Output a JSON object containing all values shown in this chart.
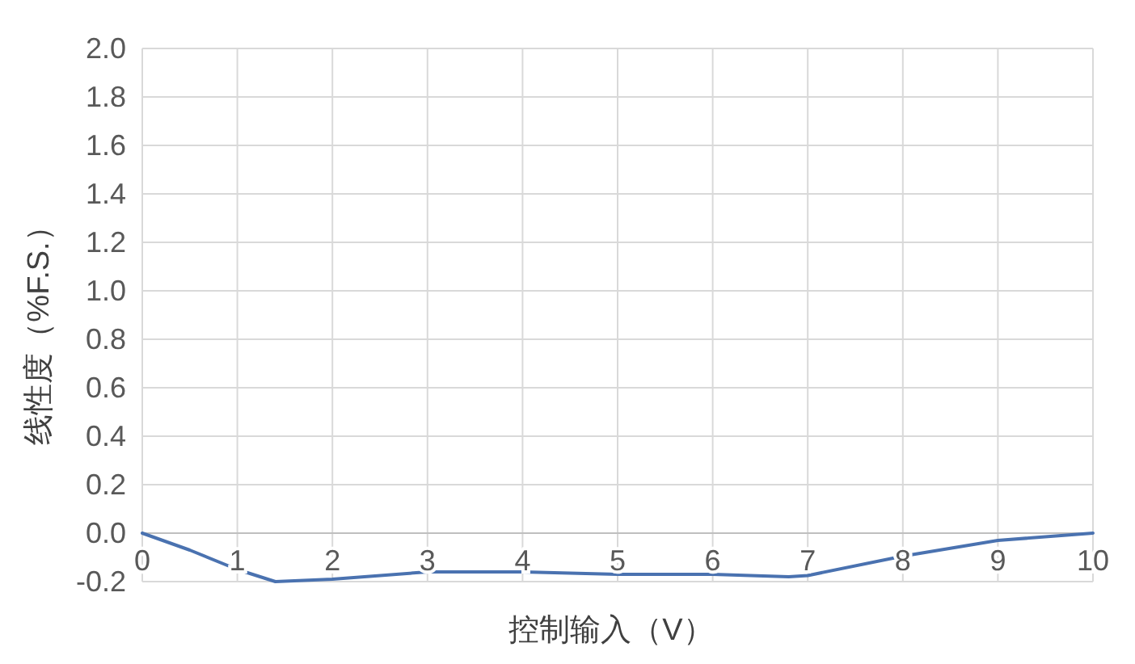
{
  "chart_data": {
    "type": "line",
    "xlabel": "控制输入（V）",
    "ylabel": "线性度（%F.S.）",
    "x": [
      0,
      0.5,
      1,
      1.4,
      2,
      3,
      4,
      5,
      6,
      6.8,
      7,
      8,
      9,
      10
    ],
    "series": [
      {
        "color": "#4a72b0",
        "values": [
          0,
          -0.07,
          -0.15,
          -0.2,
          -0.19,
          -0.16,
          -0.16,
          -0.17,
          -0.17,
          -0.18,
          -0.175,
          -0.095,
          -0.03,
          0
        ]
      }
    ],
    "xlim": [
      0,
      10
    ],
    "xticks": [
      0,
      1,
      2,
      3,
      4,
      5,
      6,
      7,
      8,
      9,
      10
    ],
    "ylim": [
      -0.2,
      2.0
    ],
    "yticks": [
      {
        "value": -0.2,
        "label": "-0.2"
      },
      {
        "value": 0,
        "label": "0.0"
      },
      {
        "value": 0.2,
        "label": "0.2"
      },
      {
        "value": 0.4,
        "label": "0.4"
      },
      {
        "value": 0.6,
        "label": "0.6"
      },
      {
        "value": 0.8,
        "label": "0.8"
      },
      {
        "value": 1.0,
        "label": "1.0"
      },
      {
        "value": 1.2,
        "label": "1.2"
      },
      {
        "value": 1.4,
        "label": "1.4"
      },
      {
        "value": 1.6,
        "label": "1.6"
      },
      {
        "value": 1.8,
        "label": "1.8"
      },
      {
        "value": 2.0,
        "label": "2.0"
      }
    ],
    "grid": true,
    "marker": "none",
    "line_style": "solid"
  }
}
